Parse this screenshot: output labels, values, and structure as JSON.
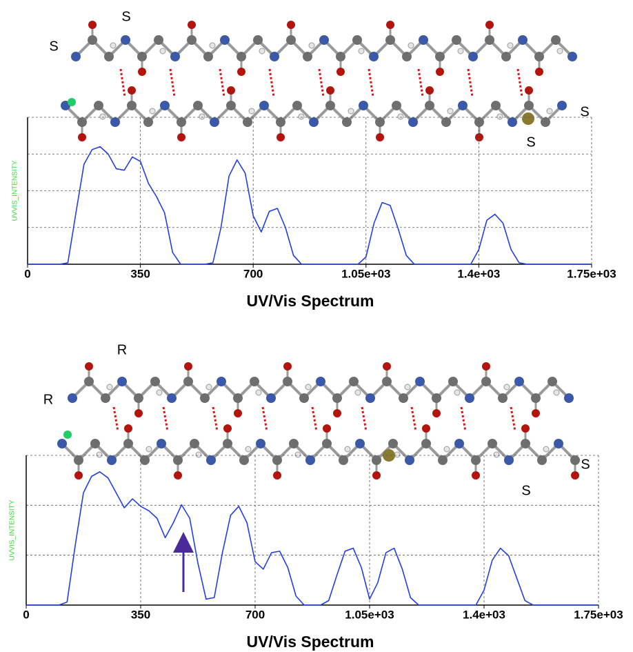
{
  "chart_data": [
    {
      "type": "line",
      "title": "UV/Vis Spectrum",
      "ylabel": "UVVIS_INTENSITY",
      "annotations": [
        "S",
        "S",
        "S",
        "S"
      ],
      "xlim": [
        0,
        1750
      ],
      "ylim": [
        0,
        1
      ],
      "xticks": [
        0,
        350,
        700,
        {
          "value": 1050,
          "label": "1.05e+03"
        },
        {
          "value": 1400,
          "label": "1.4e+03"
        },
        {
          "value": 1750,
          "label": "1.75e+03"
        }
      ],
      "grid": true,
      "x": [
        0,
        25,
        50,
        75,
        100,
        125,
        150,
        175,
        200,
        225,
        250,
        275,
        300,
        325,
        350,
        375,
        400,
        425,
        450,
        475,
        500,
        525,
        550,
        575,
        600,
        625,
        650,
        675,
        700,
        725,
        750,
        775,
        800,
        825,
        850,
        875,
        900,
        925,
        950,
        975,
        1000,
        1025,
        1050,
        1075,
        1100,
        1125,
        1150,
        1175,
        1200,
        1225,
        1250,
        1275,
        1300,
        1325,
        1350,
        1375,
        1400,
        1425,
        1450,
        1475,
        1500,
        1525,
        1550,
        1575,
        1600,
        1625,
        1650,
        1675,
        1700,
        1725,
        1750
      ],
      "series": [
        {
          "color": "#1f3fe6",
          "values": [
            0,
            0,
            0,
            0,
            0,
            0.01,
            0.35,
            0.68,
            0.78,
            0.8,
            0.75,
            0.65,
            0.64,
            0.73,
            0.7,
            0.55,
            0.46,
            0.35,
            0.08,
            0,
            0,
            0,
            0,
            0.01,
            0.25,
            0.6,
            0.71,
            0.62,
            0.33,
            0.22,
            0.36,
            0.38,
            0.25,
            0.06,
            0,
            0,
            0,
            0,
            0,
            0,
            0,
            0,
            0.05,
            0.28,
            0.42,
            0.4,
            0.24,
            0.06,
            0,
            0,
            0,
            0,
            0,
            0,
            0,
            0,
            0.1,
            0.3,
            0.34,
            0.28,
            0.1,
            0.01,
            0,
            0,
            0,
            0,
            0,
            0,
            0,
            0,
            0
          ]
        }
      ]
    },
    {
      "type": "line",
      "title": "UV/Vis Spectrum",
      "ylabel": "UVVIS_INTENSITY",
      "annotations": [
        "R",
        "R",
        "S",
        "S"
      ],
      "xlim": [
        0,
        1750
      ],
      "ylim": [
        0,
        1
      ],
      "xticks": [
        0,
        350,
        700,
        {
          "value": 1050,
          "label": "1.05e+03"
        },
        {
          "value": 1400,
          "label": "1.4e+03"
        },
        {
          "value": 1750,
          "label": "1.75e+03"
        }
      ],
      "grid": true,
      "x": [
        0,
        25,
        50,
        75,
        100,
        125,
        150,
        175,
        200,
        225,
        250,
        275,
        300,
        325,
        350,
        375,
        400,
        425,
        450,
        475,
        500,
        525,
        550,
        575,
        600,
        625,
        650,
        675,
        700,
        725,
        750,
        775,
        800,
        825,
        850,
        875,
        900,
        925,
        950,
        975,
        1000,
        1025,
        1050,
        1075,
        1100,
        1125,
        1150,
        1175,
        1200,
        1225,
        1250,
        1275,
        1300,
        1325,
        1350,
        1375,
        1400,
        1425,
        1450,
        1475,
        1500,
        1525,
        1550,
        1575,
        1600,
        1625,
        1650,
        1675,
        1700,
        1725,
        1750
      ],
      "series": [
        {
          "color": "#1f3fe6",
          "values": [
            0,
            0,
            0,
            0,
            0,
            0.02,
            0.4,
            0.75,
            0.86,
            0.89,
            0.85,
            0.75,
            0.65,
            0.71,
            0.66,
            0.63,
            0.58,
            0.45,
            0.55,
            0.67,
            0.58,
            0.28,
            0.04,
            0.05,
            0.35,
            0.6,
            0.66,
            0.55,
            0.29,
            0.24,
            0.35,
            0.36,
            0.25,
            0.06,
            0,
            0,
            0,
            0.03,
            0.2,
            0.36,
            0.38,
            0.25,
            0.04,
            0.15,
            0.35,
            0.38,
            0.24,
            0.05,
            0,
            0,
            0,
            0,
            0,
            0,
            0,
            0,
            0.1,
            0.3,
            0.38,
            0.33,
            0.18,
            0.03,
            0,
            0,
            0,
            0,
            0,
            0,
            0,
            0,
            0
          ]
        }
      ]
    }
  ]
}
